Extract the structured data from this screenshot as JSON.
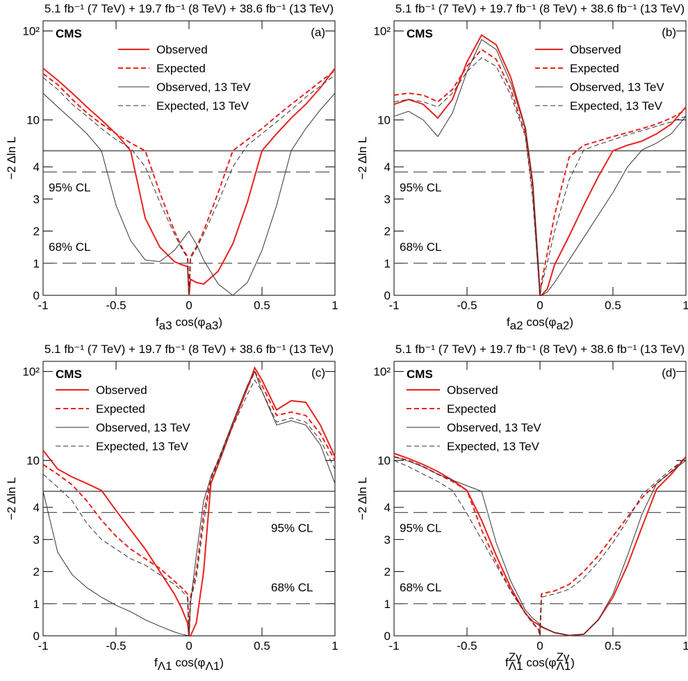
{
  "chart_data": [
    {
      "type": "line",
      "header": "5.1 fb⁻¹ (7 TeV) + 19.7 fb⁻¹ (8 TeV) + 38.6 fb⁻¹ (13 TeV)",
      "brand": "CMS",
      "panel_label": "(a)",
      "ylabel": "−2 Δln L",
      "xlabel": [
        {
          "text": "f"
        },
        {
          "text": "a3",
          "sub": true
        },
        {
          "text": " cos(φ"
        },
        {
          "text": "a3",
          "sub": true
        },
        {
          "text": ")"
        }
      ],
      "xlim": [
        -1,
        1
      ],
      "xticks": [
        -1,
        -0.5,
        0,
        0.5,
        1
      ],
      "ylim": [
        0,
        130
      ],
      "y_log_above": 4.5,
      "yticks": [
        0,
        1,
        2,
        3,
        4,
        10,
        {
          "value": 100,
          "label": "10²"
        }
      ],
      "cl_lines": [
        {
          "value": 1,
          "label": "68% CL"
        },
        {
          "value": 3.84,
          "label": "95% CL"
        }
      ],
      "x": [
        -1,
        -0.9,
        -0.8,
        -0.7,
        -0.6,
        -0.5,
        -0.4,
        -0.3,
        -0.2,
        -0.1,
        -0.05,
        -0.01,
        0,
        0.01,
        0.05,
        0.1,
        0.2,
        0.3,
        0.4,
        0.5,
        0.6,
        0.7,
        0.8,
        0.9,
        1
      ],
      "series": [
        {
          "name": "Observed",
          "color": "#e8221e",
          "dash": "solid",
          "values": [
            38,
            28,
            20,
            14,
            10,
            7,
            4.5,
            2.4,
            1.5,
            1.05,
            0.95,
            0.9,
            0,
            0.5,
            0.4,
            0.35,
            0.75,
            1.6,
            2.9,
            4.5,
            7,
            10.5,
            15,
            23,
            38
          ]
        },
        {
          "name": "Expected",
          "color": "#e8221e",
          "dash": "dashed",
          "values": [
            33,
            25,
            17,
            12,
            9,
            7,
            5.5,
            4.5,
            3.2,
            2.0,
            1.5,
            1.2,
            0,
            1.2,
            1.5,
            2.0,
            3.2,
            4.5,
            6,
            8,
            11,
            15,
            20,
            27,
            36
          ]
        },
        {
          "name": "Observed, 13 TeV",
          "color": "#333333",
          "dash": "solid",
          "values": [
            20,
            14,
            10,
            7,
            4.5,
            2.8,
            1.7,
            1.1,
            1.05,
            1.4,
            1.7,
            1.95,
            2.0,
            1.9,
            1.6,
            1.1,
            0.35,
            0,
            0.4,
            1.4,
            2.8,
            4.5,
            8,
            13,
            20
          ]
        },
        {
          "name": "Expected, 13 TeV",
          "color": "#333333",
          "dash": "dashed",
          "values": [
            30,
            22,
            15,
            11,
            8,
            6,
            4.8,
            4.0,
            2.9,
            1.9,
            1.45,
            1.15,
            0,
            1.15,
            1.45,
            1.9,
            2.9,
            4.0,
            5.2,
            7,
            9.5,
            13,
            18,
            24,
            32
          ]
        }
      ]
    },
    {
      "type": "line",
      "header": "5.1 fb⁻¹ (7 TeV) + 19.7 fb⁻¹ (8 TeV) + 38.6 fb⁻¹ (13 TeV)",
      "brand": "CMS",
      "panel_label": "(b)",
      "ylabel": "−2 Δln L",
      "xlabel": [
        {
          "text": "f"
        },
        {
          "text": "a2",
          "sub": true
        },
        {
          "text": " cos(φ"
        },
        {
          "text": "a2",
          "sub": true
        },
        {
          "text": ")"
        }
      ],
      "xlim": [
        -1,
        1
      ],
      "xticks": [
        -1,
        -0.5,
        0,
        0.5,
        1
      ],
      "ylim": [
        0,
        130
      ],
      "y_log_above": 4.5,
      "yticks": [
        0,
        1,
        2,
        3,
        4,
        10,
        {
          "value": 100,
          "label": "10²"
        }
      ],
      "cl_lines": [
        {
          "value": 1,
          "label": "68% CL"
        },
        {
          "value": 3.84,
          "label": "95% CL"
        }
      ],
      "x": [
        -1,
        -0.9,
        -0.8,
        -0.7,
        -0.6,
        -0.5,
        -0.4,
        -0.3,
        -0.2,
        -0.1,
        -0.05,
        -0.01,
        0,
        0.01,
        0.05,
        0.1,
        0.2,
        0.3,
        0.4,
        0.5,
        0.6,
        0.7,
        0.8,
        0.9,
        1
      ],
      "series": [
        {
          "name": "Observed",
          "color": "#e8221e",
          "dash": "solid",
          "values": [
            15,
            17,
            15,
            10.5,
            17,
            45,
            90,
            70,
            30,
            8,
            3.5,
            0.8,
            0,
            0,
            0.2,
            0.95,
            1.85,
            2.8,
            3.7,
            4.5,
            5.2,
            5.8,
            7,
            9,
            14
          ]
        },
        {
          "name": "Expected",
          "color": "#e8221e",
          "dash": "dashed",
          "values": [
            19,
            20,
            19,
            16,
            22,
            40,
            62,
            48,
            22,
            7,
            3.3,
            0.7,
            0,
            0.4,
            1.3,
            2.5,
            4.3,
            5.2,
            5.8,
            6.5,
            7.2,
            8,
            9,
            10.5,
            13
          ]
        },
        {
          "name": "Observed, 13 TeV",
          "color": "#333333",
          "dash": "solid",
          "values": [
            11,
            12.5,
            10,
            6.5,
            12,
            35,
            80,
            62,
            26,
            8,
            3.5,
            0.8,
            0,
            0,
            0.1,
            0.4,
            1.1,
            1.8,
            2.5,
            3.2,
            4.0,
            4.6,
            5.5,
            7,
            11
          ]
        },
        {
          "name": "Expected, 13 TeV",
          "color": "#333333",
          "dash": "dashed",
          "values": [
            16,
            17,
            16,
            14,
            20,
            35,
            50,
            40,
            19,
            6.5,
            3.0,
            0.6,
            0,
            0.3,
            1.0,
            2.0,
            3.6,
            4.6,
            5.3,
            6,
            6.8,
            7.6,
            8.5,
            9.5,
            11
          ]
        }
      ]
    },
    {
      "type": "line",
      "header": "5.1 fb⁻¹ (7 TeV) + 19.7 fb⁻¹ (8 TeV) + 38.6 fb⁻¹ (13 TeV)",
      "brand": "CMS",
      "panel_label": "(c)",
      "ylabel": "−2 Δln L",
      "xlabel": [
        {
          "text": "f"
        },
        {
          "text": "Λ1",
          "sub": true
        },
        {
          "text": " cos(φ"
        },
        {
          "text": "Λ1",
          "sub": true
        },
        {
          "text": ")"
        }
      ],
      "xlim": [
        -1,
        1
      ],
      "xticks": [
        -1,
        -0.5,
        0,
        0.5,
        1
      ],
      "ylim": [
        0,
        130
      ],
      "y_log_above": 4.5,
      "yticks": [
        0,
        1,
        2,
        3,
        4,
        10,
        {
          "value": 100,
          "label": "10²"
        }
      ],
      "cl_lines": [
        {
          "value": 1,
          "label": "68% CL"
        },
        {
          "value": 3.84,
          "label": "95% CL"
        }
      ],
      "x": [
        -1,
        -0.9,
        -0.8,
        -0.7,
        -0.6,
        -0.5,
        -0.4,
        -0.3,
        -0.2,
        -0.1,
        -0.05,
        -0.01,
        0,
        0.01,
        0.05,
        0.1,
        0.15,
        0.2,
        0.3,
        0.4,
        0.45,
        0.5,
        0.6,
        0.7,
        0.8,
        0.9,
        1
      ],
      "series": [
        {
          "name": "Observed",
          "color": "#e8221e",
          "dash": "solid",
          "values": [
            13,
            8,
            6.5,
            5.5,
            4.6,
            3.9,
            3.3,
            2.7,
            2.0,
            1.3,
            0.85,
            0.4,
            0,
            0,
            0.4,
            2.0,
            5.5,
            9,
            25,
            65,
            110,
            80,
            37,
            47,
            45,
            25,
            11
          ]
        },
        {
          "name": "Expected",
          "color": "#e8221e",
          "dash": "dashed",
          "values": [
            9,
            7,
            5.3,
            4.2,
            3.6,
            3.1,
            2.7,
            2.4,
            2.1,
            1.7,
            1.5,
            1.3,
            0,
            1.2,
            2.0,
            3.8,
            6.5,
            10,
            26,
            65,
            100,
            70,
            32,
            35,
            32,
            20,
            10
          ]
        },
        {
          "name": "Observed, 13 TeV",
          "color": "#333333",
          "dash": "solid",
          "values": [
            4.5,
            2.6,
            1.9,
            1.5,
            1.2,
            0.95,
            0.75,
            0.5,
            0.3,
            0.12,
            0.05,
            0.01,
            0,
            1.0,
            2.5,
            4.2,
            6.5,
            10,
            27,
            70,
            100,
            60,
            25,
            28,
            25,
            15,
            5.5
          ]
        },
        {
          "name": "Expected, 13 TeV",
          "color": "#333333",
          "dash": "dashed",
          "values": [
            7,
            5,
            4.2,
            3.5,
            3.0,
            2.7,
            2.4,
            2.2,
            1.9,
            1.6,
            1.4,
            1.2,
            0,
            1.1,
            1.8,
            3.5,
            6,
            9.5,
            24,
            55,
            80,
            60,
            27,
            30,
            27,
            17,
            8
          ]
        }
      ]
    },
    {
      "type": "line",
      "header": "5.1 fb⁻¹ (7 TeV) + 19.7 fb⁻¹ (8 TeV) + 38.6 fb⁻¹ (13 TeV)",
      "brand": "CMS",
      "panel_label": "(d)",
      "ylabel": "−2 Δln L",
      "xlabel": [
        {
          "text": "f"
        },
        {
          "text": "Zγ",
          "sup": true
        },
        {
          "text": "Λ1",
          "sub": true,
          "under": true
        },
        {
          "text": " cos(φ"
        },
        {
          "text": "Zγ",
          "sup": true
        },
        {
          "text": "Λ1",
          "sub": true,
          "under": true
        },
        {
          "text": ")"
        }
      ],
      "xlim": [
        -1,
        1
      ],
      "xticks": [
        -1,
        -0.5,
        0,
        0.5,
        1
      ],
      "ylim": [
        0,
        130
      ],
      "y_log_above": 4.5,
      "yticks": [
        0,
        1,
        2,
        3,
        4,
        10,
        {
          "value": 100,
          "label": "10²"
        }
      ],
      "cl_lines": [
        {
          "value": 1,
          "label": "68% CL"
        },
        {
          "value": 3.84,
          "label": "95% CL"
        }
      ],
      "x": [
        -1,
        -0.9,
        -0.8,
        -0.7,
        -0.6,
        -0.5,
        -0.4,
        -0.3,
        -0.2,
        -0.1,
        -0.05,
        -0.01,
        0,
        0.01,
        0.05,
        0.1,
        0.2,
        0.3,
        0.4,
        0.5,
        0.6,
        0.7,
        0.8,
        0.9,
        1
      ],
      "series": [
        {
          "name": "Observed",
          "color": "#e8221e",
          "dash": "solid",
          "values": [
            12,
            10.5,
            9,
            7.5,
            6,
            4.6,
            3.6,
            2.5,
            1.5,
            0.7,
            0.45,
            0.35,
            0.3,
            0.28,
            0.2,
            0.1,
            0.01,
            0.05,
            0.5,
            1.2,
            2.2,
            3.4,
            4.8,
            7,
            11
          ]
        },
        {
          "name": "Expected",
          "color": "#e8221e",
          "dash": "dashed",
          "values": [
            11,
            10,
            8.5,
            7,
            5.8,
            4.6,
            3.3,
            2.3,
            1.4,
            0.7,
            0.4,
            0.2,
            0,
            1.3,
            1.35,
            1.4,
            1.6,
            2.0,
            2.5,
            3.1,
            3.7,
            4.3,
            5.5,
            7.5,
            11
          ]
        },
        {
          "name": "Observed, 13 TeV",
          "color": "#333333",
          "dash": "solid",
          "values": [
            11,
            9.8,
            8.5,
            7,
            6,
            5.2,
            4.5,
            2.9,
            1.7,
            0.8,
            0.55,
            0.4,
            0.35,
            0.3,
            0.2,
            0.1,
            0.02,
            0.05,
            0.5,
            1.3,
            2.5,
            3.8,
            5.5,
            7.5,
            10
          ]
        },
        {
          "name": "Expected, 13 TeV",
          "color": "#333333",
          "dash": "dashed",
          "values": [
            10,
            8.5,
            7,
            5.8,
            4.6,
            3.8,
            3.0,
            2.2,
            1.4,
            0.7,
            0.4,
            0.2,
            0,
            1.2,
            1.25,
            1.3,
            1.45,
            1.8,
            2.3,
            2.9,
            3.6,
            4.4,
            5.8,
            8,
            10.5
          ]
        }
      ]
    }
  ]
}
